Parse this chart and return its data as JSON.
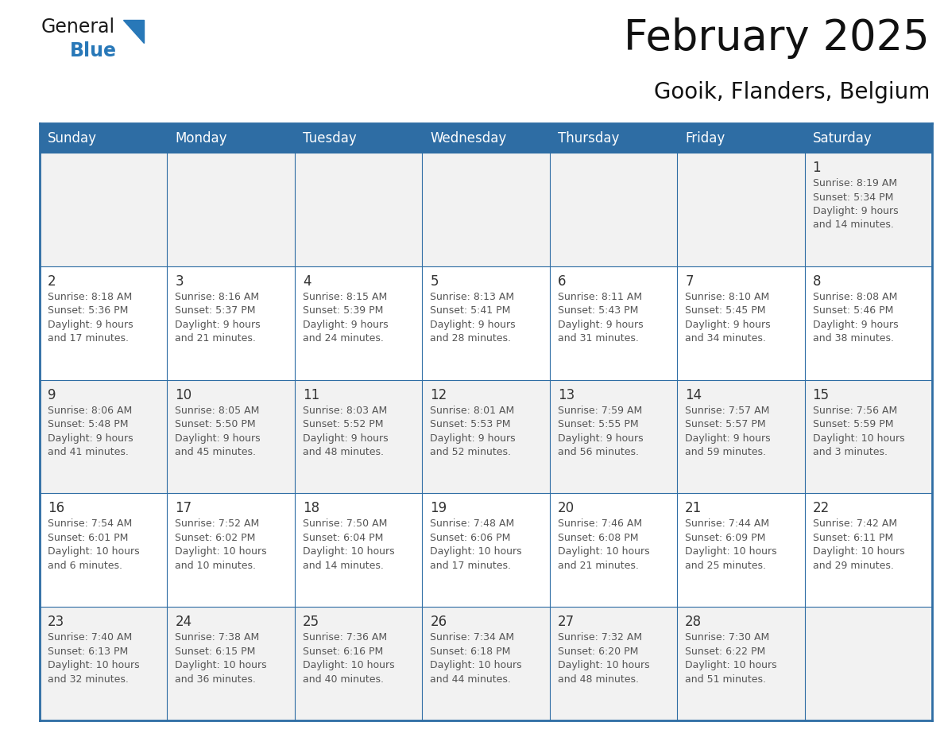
{
  "title": "February 2025",
  "subtitle": "Gooik, Flanders, Belgium",
  "header_bg": "#2E6DA4",
  "header_text": "#FFFFFF",
  "cell_bg_odd": "#F2F2F2",
  "cell_bg_even": "#FFFFFF",
  "grid_line_color": "#2E6DA4",
  "day_names": [
    "Sunday",
    "Monday",
    "Tuesday",
    "Wednesday",
    "Thursday",
    "Friday",
    "Saturday"
  ],
  "days_data": [
    {
      "day": 1,
      "col": 6,
      "row": 0,
      "sunrise": "8:19 AM",
      "sunset": "5:34 PM",
      "daylight": "9 hours and 14 minutes."
    },
    {
      "day": 2,
      "col": 0,
      "row": 1,
      "sunrise": "8:18 AM",
      "sunset": "5:36 PM",
      "daylight": "9 hours and 17 minutes."
    },
    {
      "day": 3,
      "col": 1,
      "row": 1,
      "sunrise": "8:16 AM",
      "sunset": "5:37 PM",
      "daylight": "9 hours and 21 minutes."
    },
    {
      "day": 4,
      "col": 2,
      "row": 1,
      "sunrise": "8:15 AM",
      "sunset": "5:39 PM",
      "daylight": "9 hours and 24 minutes."
    },
    {
      "day": 5,
      "col": 3,
      "row": 1,
      "sunrise": "8:13 AM",
      "sunset": "5:41 PM",
      "daylight": "9 hours and 28 minutes."
    },
    {
      "day": 6,
      "col": 4,
      "row": 1,
      "sunrise": "8:11 AM",
      "sunset": "5:43 PM",
      "daylight": "9 hours and 31 minutes."
    },
    {
      "day": 7,
      "col": 5,
      "row": 1,
      "sunrise": "8:10 AM",
      "sunset": "5:45 PM",
      "daylight": "9 hours and 34 minutes."
    },
    {
      "day": 8,
      "col": 6,
      "row": 1,
      "sunrise": "8:08 AM",
      "sunset": "5:46 PM",
      "daylight": "9 hours and 38 minutes."
    },
    {
      "day": 9,
      "col": 0,
      "row": 2,
      "sunrise": "8:06 AM",
      "sunset": "5:48 PM",
      "daylight": "9 hours and 41 minutes."
    },
    {
      "day": 10,
      "col": 1,
      "row": 2,
      "sunrise": "8:05 AM",
      "sunset": "5:50 PM",
      "daylight": "9 hours and 45 minutes."
    },
    {
      "day": 11,
      "col": 2,
      "row": 2,
      "sunrise": "8:03 AM",
      "sunset": "5:52 PM",
      "daylight": "9 hours and 48 minutes."
    },
    {
      "day": 12,
      "col": 3,
      "row": 2,
      "sunrise": "8:01 AM",
      "sunset": "5:53 PM",
      "daylight": "9 hours and 52 minutes."
    },
    {
      "day": 13,
      "col": 4,
      "row": 2,
      "sunrise": "7:59 AM",
      "sunset": "5:55 PM",
      "daylight": "9 hours and 56 minutes."
    },
    {
      "day": 14,
      "col": 5,
      "row": 2,
      "sunrise": "7:57 AM",
      "sunset": "5:57 PM",
      "daylight": "9 hours and 59 minutes."
    },
    {
      "day": 15,
      "col": 6,
      "row": 2,
      "sunrise": "7:56 AM",
      "sunset": "5:59 PM",
      "daylight": "10 hours and 3 minutes."
    },
    {
      "day": 16,
      "col": 0,
      "row": 3,
      "sunrise": "7:54 AM",
      "sunset": "6:01 PM",
      "daylight": "10 hours and 6 minutes."
    },
    {
      "day": 17,
      "col": 1,
      "row": 3,
      "sunrise": "7:52 AM",
      "sunset": "6:02 PM",
      "daylight": "10 hours and 10 minutes."
    },
    {
      "day": 18,
      "col": 2,
      "row": 3,
      "sunrise": "7:50 AM",
      "sunset": "6:04 PM",
      "daylight": "10 hours and 14 minutes."
    },
    {
      "day": 19,
      "col": 3,
      "row": 3,
      "sunrise": "7:48 AM",
      "sunset": "6:06 PM",
      "daylight": "10 hours and 17 minutes."
    },
    {
      "day": 20,
      "col": 4,
      "row": 3,
      "sunrise": "7:46 AM",
      "sunset": "6:08 PM",
      "daylight": "10 hours and 21 minutes."
    },
    {
      "day": 21,
      "col": 5,
      "row": 3,
      "sunrise": "7:44 AM",
      "sunset": "6:09 PM",
      "daylight": "10 hours and 25 minutes."
    },
    {
      "day": 22,
      "col": 6,
      "row": 3,
      "sunrise": "7:42 AM",
      "sunset": "6:11 PM",
      "daylight": "10 hours and 29 minutes."
    },
    {
      "day": 23,
      "col": 0,
      "row": 4,
      "sunrise": "7:40 AM",
      "sunset": "6:13 PM",
      "daylight": "10 hours and 32 minutes."
    },
    {
      "day": 24,
      "col": 1,
      "row": 4,
      "sunrise": "7:38 AM",
      "sunset": "6:15 PM",
      "daylight": "10 hours and 36 minutes."
    },
    {
      "day": 25,
      "col": 2,
      "row": 4,
      "sunrise": "7:36 AM",
      "sunset": "6:16 PM",
      "daylight": "10 hours and 40 minutes."
    },
    {
      "day": 26,
      "col": 3,
      "row": 4,
      "sunrise": "7:34 AM",
      "sunset": "6:18 PM",
      "daylight": "10 hours and 44 minutes."
    },
    {
      "day": 27,
      "col": 4,
      "row": 4,
      "sunrise": "7:32 AM",
      "sunset": "6:20 PM",
      "daylight": "10 hours and 48 minutes."
    },
    {
      "day": 28,
      "col": 5,
      "row": 4,
      "sunrise": "7:30 AM",
      "sunset": "6:22 PM",
      "daylight": "10 hours and 51 minutes."
    }
  ],
  "logo_color_general": "#1a1a1a",
  "logo_color_blue": "#2878b8",
  "logo_triangle_color": "#2878b8",
  "title_fontsize": 38,
  "subtitle_fontsize": 20,
  "header_fontsize": 12,
  "day_num_fontsize": 12,
  "cell_text_fontsize": 9
}
